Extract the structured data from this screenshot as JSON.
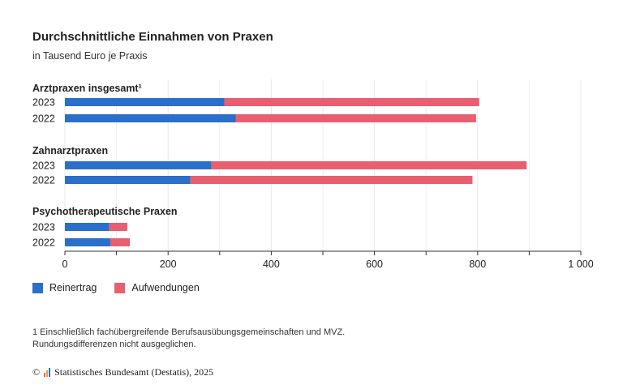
{
  "chart_data": {
    "type": "bar",
    "orientation": "horizontal",
    "stacked": true,
    "title": "Durchschnittliche Einnahmen von Praxen",
    "subtitle": "in Tausend Euro je Praxis",
    "xlim": [
      0,
      1000
    ],
    "x_ticks": [
      0,
      200,
      400,
      600,
      800,
      1000
    ],
    "x_tick_labels": [
      "0",
      "200",
      "400",
      "600",
      "800",
      "1 000"
    ],
    "grid": true,
    "legend_position": "bottom-left",
    "series": [
      {
        "name": "Reinertrag",
        "color": "#2a6fc9"
      },
      {
        "name": "Aufwendungen",
        "color": "#e8606f"
      }
    ],
    "groups": [
      {
        "label": "Arztpraxen insgesamt¹",
        "rows": [
          {
            "year": "2023",
            "values": [
              309,
              494
            ]
          },
          {
            "year": "2022",
            "values": [
              331,
              466
            ]
          }
        ]
      },
      {
        "label": "Zahnarztpraxen",
        "rows": [
          {
            "year": "2023",
            "values": [
              284,
              611
            ]
          },
          {
            "year": "2022",
            "values": [
              243,
              547
            ]
          }
        ]
      },
      {
        "label": "Psychotherapeutische Praxen",
        "rows": [
          {
            "year": "2023",
            "values": [
              86,
              35
            ]
          },
          {
            "year": "2022",
            "values": [
              88,
              38
            ]
          }
        ]
      }
    ]
  },
  "footnote": {
    "line1": "1 Einschließlich fachübergreifende Berufsausübungsgemeinschaften und MVZ.",
    "line2": "Rundungsdifferenzen nicht ausgeglichen."
  },
  "source": {
    "copyright": "©",
    "text": "Statistisches Bundesamt (Destatis), 2025",
    "icon": "destatis-logo-icon"
  }
}
